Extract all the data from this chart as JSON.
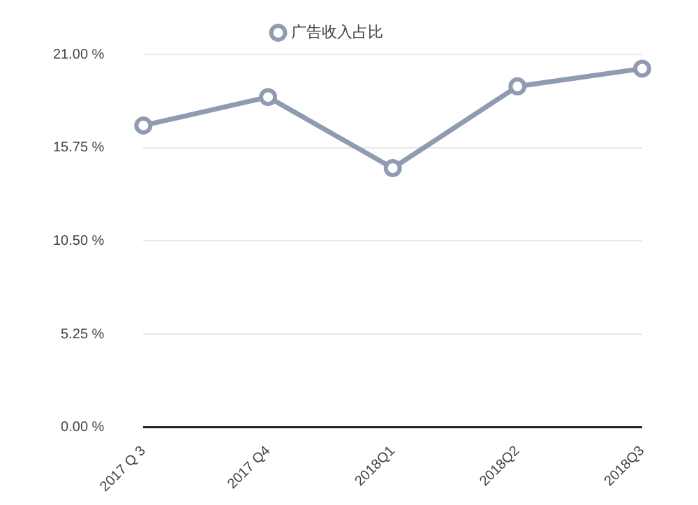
{
  "chart_data": {
    "type": "line",
    "categories": [
      "2017 Q 3",
      "2017 Q4",
      "2018Q1",
      "2018Q2",
      "2018Q3"
    ],
    "series": [
      {
        "name": "广告收入占比",
        "color": "#8e9bb0",
        "values": [
          17.0,
          18.6,
          14.6,
          19.2,
          20.2
        ]
      }
    ],
    "ylim": [
      0,
      21
    ],
    "yticks": [
      {
        "value": 0,
        "label": "0.00 %"
      },
      {
        "value": 5.25,
        "label": "5.25 %"
      },
      {
        "value": 10.5,
        "label": "10.50 %"
      },
      {
        "value": 15.75,
        "label": "15.75 %"
      },
      {
        "value": 21,
        "label": "21.00 %"
      }
    ],
    "grid": "y",
    "legend": "top",
    "marker": "circle"
  }
}
